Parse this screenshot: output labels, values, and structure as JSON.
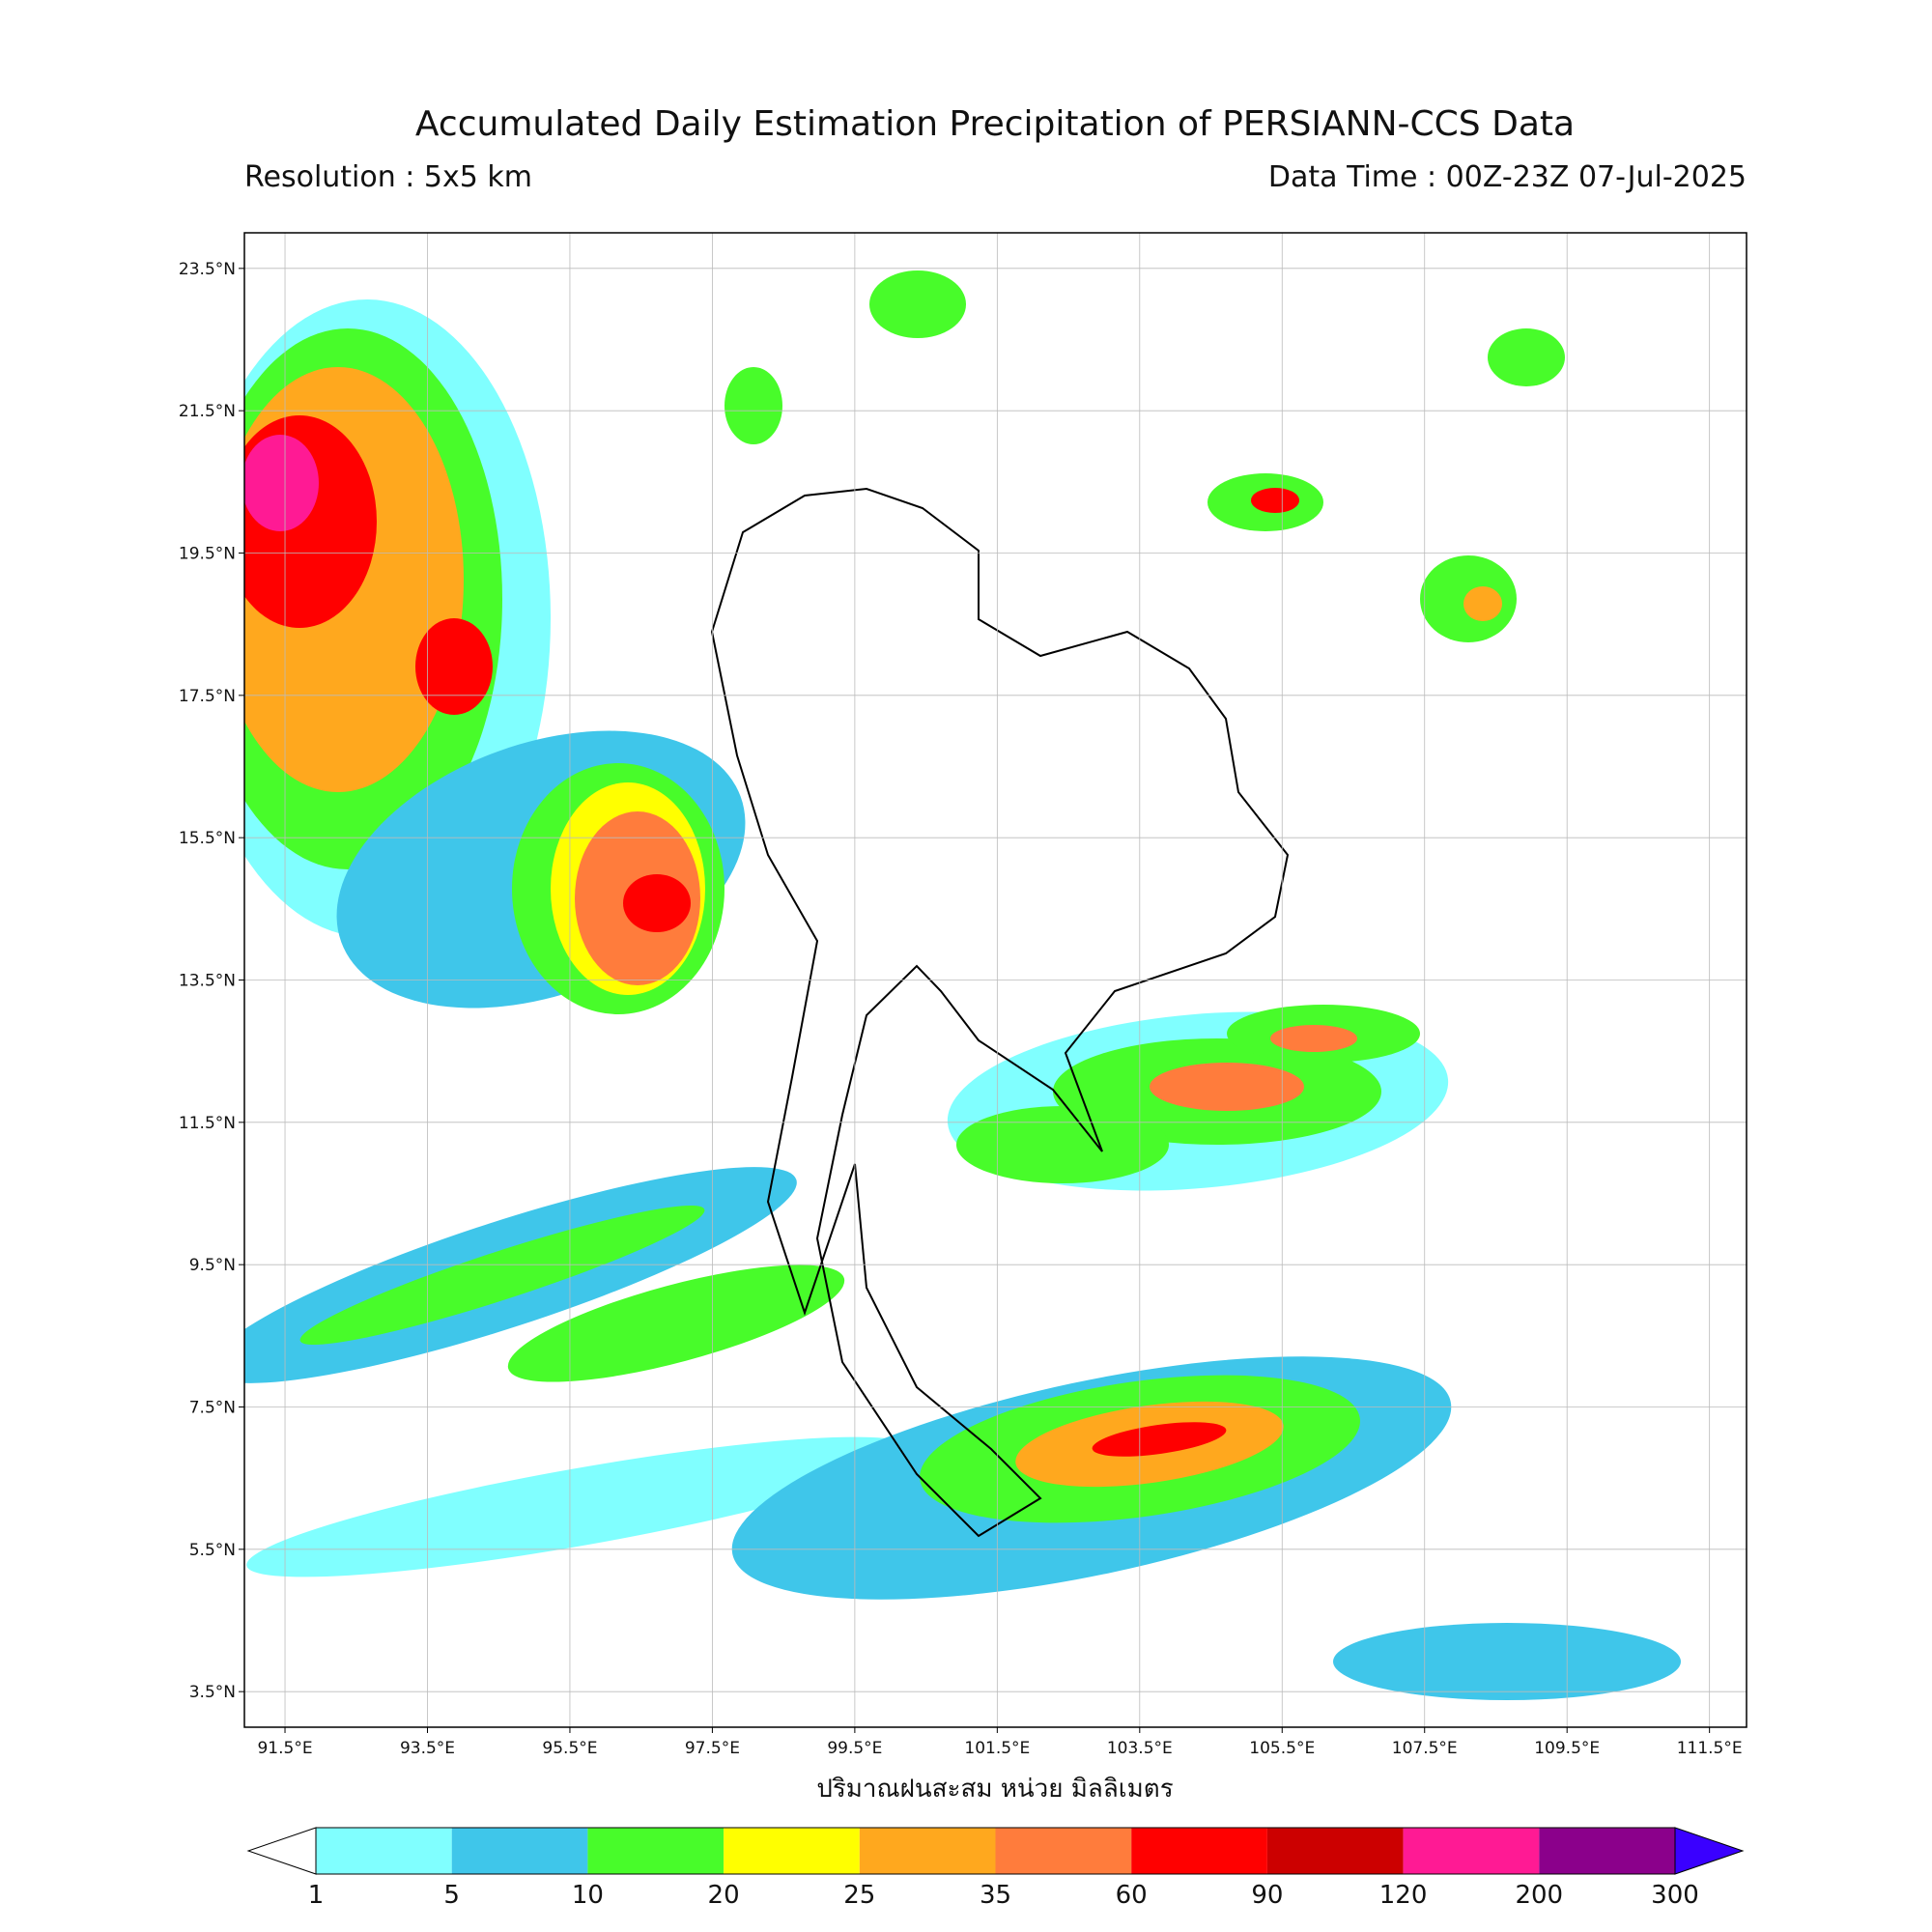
{
  "header": {
    "title": "Accumulated Daily Estimation Precipitation of PERSIANN-CCS Data",
    "resolution": "Resolution : 5x5 km",
    "data_time": "Data Time : 00Z-23Z 07-Jul-2025"
  },
  "map": {
    "xlim": [
      90.93,
      112.02
    ],
    "ylim": [
      3,
      24
    ],
    "grid": true,
    "xticks": [
      {
        "value": 91.5,
        "label": "91.5°E"
      },
      {
        "value": 93.5,
        "label": "93.5°E"
      },
      {
        "value": 95.5,
        "label": "95.5°E"
      },
      {
        "value": 97.5,
        "label": "97.5°E"
      },
      {
        "value": 99.5,
        "label": "99.5°E"
      },
      {
        "value": 101.5,
        "label": "101.5°E"
      },
      {
        "value": 103.5,
        "label": "103.5°E"
      },
      {
        "value": 105.5,
        "label": "105.5°E"
      },
      {
        "value": 107.5,
        "label": "107.5°E"
      },
      {
        "value": 109.5,
        "label": "109.5°E"
      },
      {
        "value": 111.5,
        "label": "111.5°E"
      }
    ],
    "yticks": [
      {
        "value": 23.5,
        "label": "23.5°N"
      },
      {
        "value": 21.5,
        "label": "21.5°N"
      },
      {
        "value": 19.5,
        "label": "19.5°N"
      },
      {
        "value": 17.5,
        "label": "17.5°N"
      },
      {
        "value": 15.5,
        "label": "15.5°N"
      },
      {
        "value": 13.5,
        "label": "13.5°N"
      },
      {
        "value": 11.5,
        "label": "11.5°N"
      },
      {
        "value": 9.5,
        "label": "9.5°N"
      },
      {
        "value": 7.5,
        "label": "7.5°N"
      },
      {
        "value": 5.5,
        "label": "5.5°N"
      },
      {
        "value": 3.5,
        "label": "3.5°N"
      }
    ],
    "xlabel": "ปริมาณฝนสะสม หน่วย มิลลิเมตร"
  },
  "colorbar": {
    "levels": [
      1,
      5,
      10,
      20,
      25,
      35,
      60,
      90,
      120,
      200,
      300
    ],
    "colors": [
      "#80ffff",
      "#3fc6ea",
      "#48fc2a",
      "#ffff00",
      "#ffa81e",
      "#ff7c3c",
      "#ff0000",
      "#cc0000",
      "#ff1a94",
      "#8b008b"
    ],
    "under_color": "#ffffff",
    "over_color": "#3a00ff"
  }
}
